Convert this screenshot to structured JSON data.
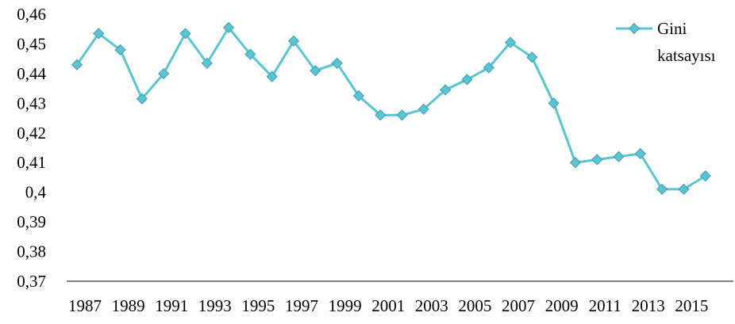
{
  "chart_data": {
    "type": "line",
    "title": "",
    "xlabel": "",
    "ylabel": "",
    "ylim": [
      0.37,
      0.46
    ],
    "y_ticks": [
      "0,37",
      "0,38",
      "0,39",
      "0,4",
      "0,41",
      "0,42",
      "0,43",
      "0,44",
      "0,45",
      "0,46"
    ],
    "y_tick_values": [
      0.37,
      0.38,
      0.39,
      0.4,
      0.41,
      0.42,
      0.43,
      0.44,
      0.45,
      0.46
    ],
    "x": [
      1987,
      1988,
      1989,
      1990,
      1991,
      1992,
      1993,
      1994,
      1995,
      1996,
      1997,
      1998,
      1999,
      2000,
      2001,
      2002,
      2003,
      2004,
      2005,
      2006,
      2007,
      2008,
      2009,
      2010,
      2011,
      2012,
      2013,
      2014,
      2015,
      2016
    ],
    "x_tick_labels": [
      "1987",
      "1989",
      "1991",
      "1993",
      "1995",
      "1997",
      "1999",
      "2001",
      "2003",
      "2005",
      "2007",
      "2009",
      "2011",
      "2013",
      "2015"
    ],
    "series": [
      {
        "name": "Gini katsayısı",
        "color": "#5bc4d1",
        "marker": "diamond",
        "values": [
          0.443,
          0.4535,
          0.448,
          0.4315,
          0.44,
          0.4535,
          0.4435,
          0.4555,
          0.4465,
          0.439,
          0.451,
          0.441,
          0.4435,
          0.4325,
          0.426,
          0.426,
          0.428,
          0.4345,
          0.438,
          0.442,
          0.4505,
          0.4455,
          0.43,
          0.41,
          0.411,
          0.412,
          0.413,
          0.401,
          0.401,
          0.4055
        ]
      }
    ],
    "legend": {
      "position": "top-right",
      "line1": "Gini",
      "line2": "katsayısı"
    },
    "grid": false
  }
}
